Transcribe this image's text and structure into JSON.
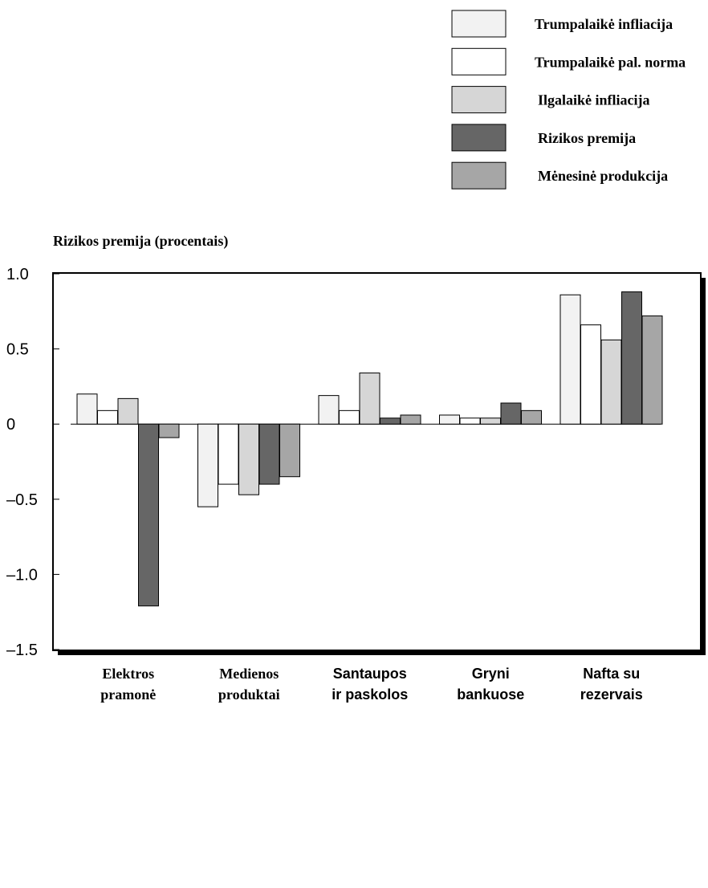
{
  "chart_data": {
    "type": "bar",
    "title": "",
    "ylabel": "Rizikos premija (procentais)",
    "xlabel": "",
    "ylim": [
      -1.5,
      1.0
    ],
    "yticks": [
      {
        "value": 1.0,
        "label": "1.0"
      },
      {
        "value": 0.5,
        "label": "0.5"
      },
      {
        "value": 0,
        "label": "0"
      },
      {
        "value": -0.5,
        "label": "–0.5"
      },
      {
        "value": -1.0,
        "label": "–1.0"
      },
      {
        "value": -1.5,
        "label": "–1.5"
      }
    ],
    "grid": false,
    "legend_position": "top-right",
    "categories": [
      {
        "lines": [
          "Elektros",
          "pramonė"
        ],
        "font": "serif"
      },
      {
        "lines": [
          "Medienos",
          "produktai"
        ],
        "font": "serif"
      },
      {
        "lines": [
          "Santaupos",
          "ir paskolos"
        ],
        "font": "sans"
      },
      {
        "lines": [
          "Gryni",
          "bankuose"
        ],
        "font": "sans"
      },
      {
        "lines": [
          "Nafta su",
          "rezervais"
        ],
        "font": "sans"
      }
    ],
    "series": [
      {
        "name": "Trumpalaikė infliacija",
        "color": "#f2f2f2",
        "values": [
          0.2,
          -0.55,
          0.19,
          0.06,
          0.86
        ]
      },
      {
        "name": "Trumpalaikė pal. norma",
        "color": "#ffffff",
        "values": [
          0.09,
          -0.4,
          0.09,
          0.04,
          0.66
        ]
      },
      {
        "name": "Ilgalaikė infliacija",
        "color": "#d6d6d6",
        "values": [
          0.17,
          -0.47,
          0.34,
          0.04,
          0.56
        ]
      },
      {
        "name": "Rizikos premija",
        "color": "#666666",
        "values": [
          -1.21,
          -0.4,
          0.04,
          0.14,
          0.88
        ]
      },
      {
        "name": "Mėnesinė produkcija",
        "color": "#a6a6a6",
        "values": [
          -0.09,
          -0.35,
          0.06,
          0.09,
          0.72
        ]
      }
    ]
  }
}
